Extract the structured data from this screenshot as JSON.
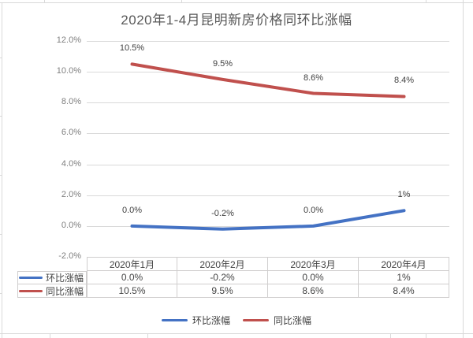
{
  "chart_data": {
    "type": "line",
    "title": "2020年1-4月昆明新房价格同环比涨幅",
    "categories": [
      "2020年1月",
      "2020年2月",
      "2020年3月",
      "2020年4月"
    ],
    "series": [
      {
        "name": "环比涨幅",
        "color": "#4472C4",
        "values": [
          0.0,
          -0.2,
          0.0,
          1.0
        ],
        "labels": [
          "0.0%",
          "-0.2%",
          "0.0%",
          "1%"
        ]
      },
      {
        "name": "同比涨幅",
        "color": "#C0504D",
        "values": [
          10.5,
          9.5,
          8.6,
          8.4
        ],
        "labels": [
          "10.5%",
          "9.5%",
          "8.6%",
          "8.4%"
        ]
      }
    ],
    "yticks": [
      "12.0%",
      "10.0%",
      "8.0%",
      "6.0%",
      "4.0%",
      "2.0%",
      "0.0%",
      "-2.0%"
    ],
    "ylim": [
      -2,
      12
    ],
    "grid": true,
    "legend_position": "bottom",
    "data_table_shown": true
  },
  "colors": {
    "gridline": "#d9d9d9",
    "axis_text": "#7f7f7f",
    "data_label_text": "#404040",
    "title_text": "#595959",
    "table_border": "#d0cece"
  }
}
